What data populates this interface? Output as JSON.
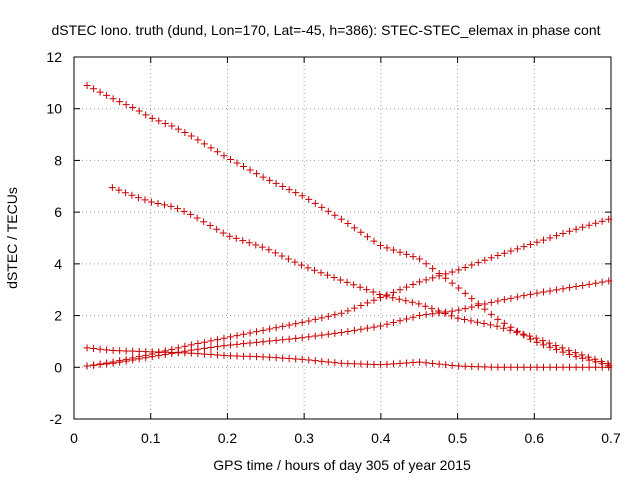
{
  "chart_data": {
    "type": "scatter",
    "title": "dSTEC Iono. truth (dund, Lon=170, Lat=-45, h=386): STEC-STEC_elemax in phase cont",
    "xlabel": "GPS time / hours of day 305 of year 2015",
    "ylabel": "dSTEC  / TECUs",
    "xlim": [
      0,
      0.7
    ],
    "ylim": [
      -2,
      12
    ],
    "xticks": [
      0,
      0.1,
      0.2,
      0.3,
      0.4,
      0.5,
      0.6,
      0.7
    ],
    "yticks": [
      -2,
      0,
      2,
      4,
      6,
      8,
      10,
      12
    ],
    "xtick_labels": [
      "0",
      "0.1",
      "0.2",
      "0.3",
      "0.4",
      "0.5",
      "0.6",
      "0.7"
    ],
    "ytick_labels": [
      "-2",
      "0",
      "2",
      "4",
      "6",
      "8",
      "10",
      "12"
    ],
    "grid": true,
    "legend": "none",
    "marker": "+",
    "color": "#cc0000",
    "series": [
      {
        "points": [
          [
            0.017,
            10.9
          ],
          [
            0.05,
            10.4
          ],
          [
            0.08,
            10.0
          ],
          [
            0.1,
            9.65
          ],
          [
            0.13,
            9.3
          ],
          [
            0.15,
            9.0
          ],
          [
            0.2,
            8.1
          ],
          [
            0.25,
            7.3
          ],
          [
            0.3,
            6.6
          ],
          [
            0.35,
            5.7
          ],
          [
            0.4,
            4.7
          ],
          [
            0.45,
            4.2
          ],
          [
            0.5,
            3.1
          ],
          [
            0.55,
            1.9
          ],
          [
            0.6,
            1.0
          ],
          [
            0.65,
            0.45
          ],
          [
            0.7,
            0.05
          ]
        ]
      },
      {
        "points": [
          [
            0.05,
            6.95
          ],
          [
            0.08,
            6.6
          ],
          [
            0.1,
            6.4
          ],
          [
            0.13,
            6.2
          ],
          [
            0.15,
            5.95
          ],
          [
            0.2,
            5.1
          ],
          [
            0.25,
            4.6
          ],
          [
            0.3,
            3.9
          ],
          [
            0.35,
            3.35
          ],
          [
            0.4,
            2.8
          ],
          [
            0.45,
            2.45
          ],
          [
            0.5,
            1.9
          ],
          [
            0.55,
            1.6
          ],
          [
            0.6,
            1.15
          ],
          [
            0.65,
            0.6
          ],
          [
            0.7,
            0.1
          ]
        ]
      },
      {
        "points": [
          [
            0.017,
            0.05
          ],
          [
            0.05,
            0.2
          ],
          [
            0.1,
            0.5
          ],
          [
            0.15,
            0.85
          ],
          [
            0.2,
            1.15
          ],
          [
            0.25,
            1.45
          ],
          [
            0.3,
            1.75
          ],
          [
            0.35,
            2.1
          ],
          [
            0.4,
            2.7
          ],
          [
            0.45,
            3.3
          ],
          [
            0.5,
            3.75
          ],
          [
            0.55,
            4.3
          ],
          [
            0.6,
            4.8
          ],
          [
            0.65,
            5.3
          ],
          [
            0.7,
            5.75
          ]
        ]
      },
      {
        "points": [
          [
            0.017,
            0.05
          ],
          [
            0.05,
            0.15
          ],
          [
            0.1,
            0.4
          ],
          [
            0.15,
            0.65
          ],
          [
            0.2,
            0.85
          ],
          [
            0.25,
            1.0
          ],
          [
            0.3,
            1.15
          ],
          [
            0.35,
            1.35
          ],
          [
            0.4,
            1.6
          ],
          [
            0.45,
            2.0
          ],
          [
            0.5,
            2.2
          ],
          [
            0.55,
            2.55
          ],
          [
            0.6,
            2.85
          ],
          [
            0.65,
            3.1
          ],
          [
            0.7,
            3.35
          ]
        ]
      },
      {
        "points": [
          [
            0.017,
            0.75
          ],
          [
            0.05,
            0.65
          ],
          [
            0.1,
            0.6
          ],
          [
            0.15,
            0.55
          ],
          [
            0.2,
            0.45
          ],
          [
            0.25,
            0.4
          ],
          [
            0.3,
            0.3
          ],
          [
            0.35,
            0.15
          ],
          [
            0.4,
            0.1
          ],
          [
            0.45,
            0.2
          ],
          [
            0.5,
            0.05
          ],
          [
            0.55,
            0.0
          ],
          [
            0.6,
            0.0
          ],
          [
            0.65,
            0.0
          ],
          [
            0.7,
            0.0
          ]
        ]
      }
    ]
  }
}
